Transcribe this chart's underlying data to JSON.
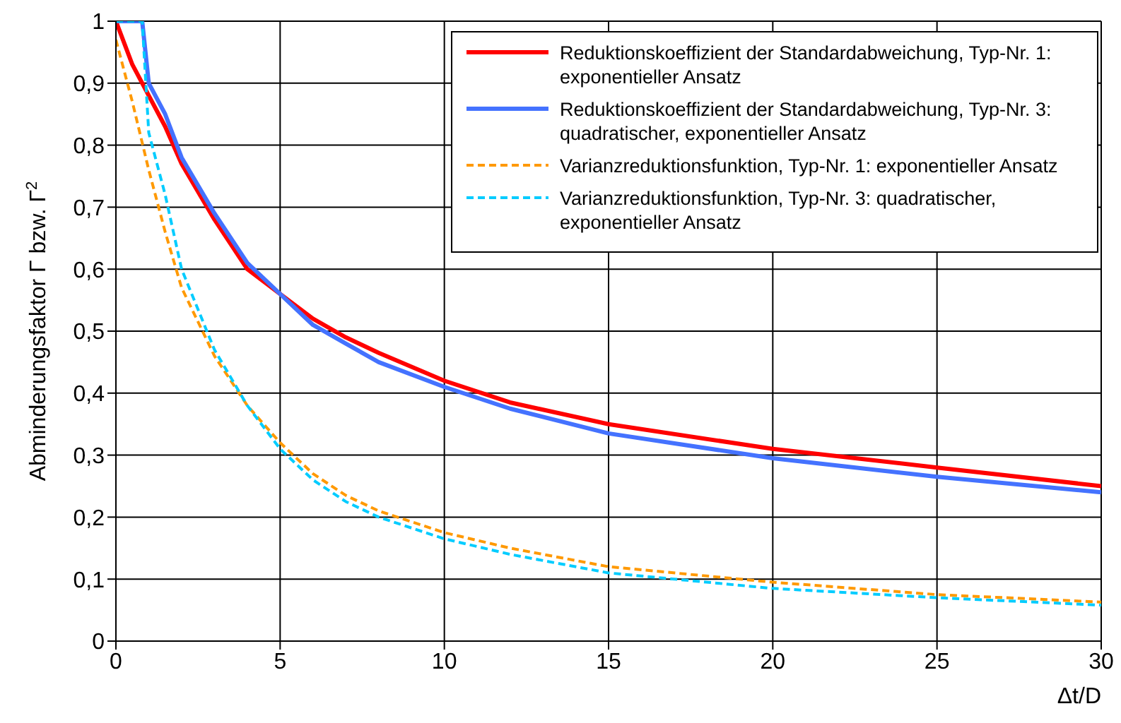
{
  "chart_data": {
    "type": "line",
    "xlabel": "Δt/D",
    "ylabel": "Abminderungsfaktor Γ bzw. Γ$^{2}$",
    "xlim": [
      0,
      30
    ],
    "xticks": [
      0,
      5,
      10,
      15,
      20,
      25,
      30
    ],
    "ylim": [
      0,
      1
    ],
    "yticks": [
      {
        "value": 0,
        "label": "0"
      },
      {
        "value": 0.1,
        "label": "0,1"
      },
      {
        "value": 0.2,
        "label": "0,2"
      },
      {
        "value": 0.3,
        "label": "0,3"
      },
      {
        "value": 0.4,
        "label": "0,4"
      },
      {
        "value": 0.5,
        "label": "0,5"
      },
      {
        "value": 0.6,
        "label": "0,6"
      },
      {
        "value": 0.7,
        "label": "0,7"
      },
      {
        "value": 0.8,
        "label": "0,8"
      },
      {
        "value": 0.9,
        "label": "0,9"
      },
      {
        "value": 1,
        "label": "1"
      }
    ],
    "grid": true,
    "legend": "top right",
    "marker": "none",
    "series": [
      {
        "name": "Reduktionskoeffizient der Standardabweichung, Typ-Nr. 1: exponentieller Ansatz",
        "color": "#ff0000",
        "line_style": "solid",
        "x": [
          0,
          0.5,
          1,
          1.5,
          2,
          3,
          4,
          5,
          6,
          7,
          8,
          10,
          12,
          15,
          20,
          25,
          30
        ],
        "values": [
          1,
          0.93,
          0.88,
          0.83,
          0.77,
          0.68,
          0.6,
          0.56,
          0.52,
          0.49,
          0.465,
          0.42,
          0.385,
          0.35,
          0.31,
          0.28,
          0.25
        ]
      },
      {
        "name": "Reduktionskoeffizient der Standardabweichung, Typ-Nr. 3: quadratischer, exponentieller Ansatz",
        "color": "#4472ff",
        "line_style": "solid",
        "x": [
          0,
          0.8,
          1,
          1.5,
          2,
          3,
          4,
          5,
          6,
          7,
          8,
          10,
          12,
          15,
          20,
          25,
          30
        ],
        "values": [
          1,
          1,
          0.9,
          0.85,
          0.78,
          0.69,
          0.61,
          0.56,
          0.51,
          0.48,
          0.45,
          0.41,
          0.375,
          0.335,
          0.295,
          0.265,
          0.24
        ]
      },
      {
        "name": "Varianzreduktionsfunktion, Typ-Nr. 1: exponentieller Ansatz",
        "color": "#ff9900",
        "line_style": "dashed",
        "x": [
          0,
          0.5,
          1,
          1.5,
          2,
          3,
          4,
          5,
          6,
          7,
          8,
          10,
          12,
          15,
          20,
          25,
          30
        ],
        "values": [
          0.97,
          0.87,
          0.76,
          0.66,
          0.57,
          0.46,
          0.38,
          0.32,
          0.27,
          0.235,
          0.21,
          0.175,
          0.15,
          0.12,
          0.095,
          0.075,
          0.063
        ]
      },
      {
        "name": "Varianzreduktionsfunktion, Typ-Nr. 3: quadratischer, exponentieller Ansatz",
        "color": "#00ccff",
        "line_style": "dashed",
        "x": [
          0,
          0.8,
          1,
          1.5,
          2,
          3,
          4,
          5,
          6,
          7,
          8,
          10,
          12,
          15,
          20,
          25,
          30
        ],
        "values": [
          1,
          1,
          0.82,
          0.72,
          0.6,
          0.47,
          0.38,
          0.31,
          0.26,
          0.225,
          0.2,
          0.165,
          0.14,
          0.11,
          0.085,
          0.07,
          0.058
        ]
      }
    ]
  }
}
